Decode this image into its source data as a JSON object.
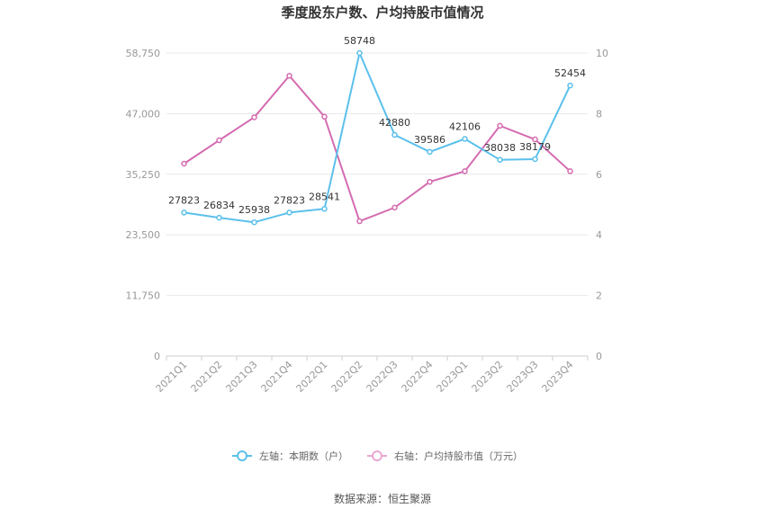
{
  "chart_data": {
    "type": "line",
    "title": "季度股东户数、户均持股市值情况",
    "categories": [
      "2021Q1",
      "2021Q2",
      "2021Q3",
      "2021Q4",
      "2022Q1",
      "2022Q2",
      "2022Q3",
      "2022Q4",
      "2023Q1",
      "2023Q2",
      "2023Q3",
      "2023Q4"
    ],
    "left_axis": {
      "ticks": [
        "0",
        "11,750",
        "23,500",
        "35,250",
        "47,000",
        "58,750"
      ],
      "range": [
        0,
        58750
      ]
    },
    "right_axis": {
      "ticks": [
        "0",
        "2",
        "4",
        "6",
        "8",
        "10"
      ],
      "range": [
        0,
        10
      ]
    },
    "series": [
      {
        "name": "左轴：本期数（户）",
        "axis": "left",
        "color": "#5bc0eb",
        "values": [
          27823,
          26834,
          25938,
          27823,
          28541,
          58748,
          42880,
          39586,
          42106,
          38038,
          38179,
          52454
        ],
        "labels": [
          "27823",
          "26834",
          "25938",
          "27823",
          "28541",
          "58748",
          "42880",
          "39586",
          "42106",
          "38038",
          "38179",
          "52454"
        ]
      },
      {
        "name": "右轴：户均持股市值（万元）",
        "axis": "right",
        "color": "#d46bb0",
        "values": [
          6.35,
          7.12,
          7.88,
          9.25,
          7.9,
          4.45,
          4.9,
          5.75,
          6.1,
          7.6,
          7.15,
          6.1
        ]
      }
    ],
    "grid": true,
    "legend_position": "bottom"
  },
  "source": "数据来源：恒生聚源"
}
